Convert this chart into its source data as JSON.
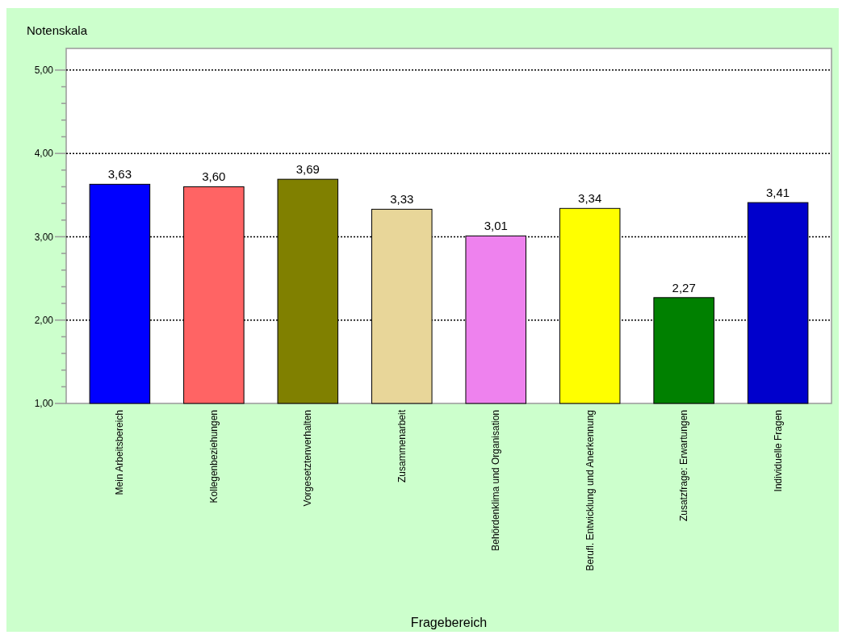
{
  "chart_data": {
    "type": "bar",
    "xlabel": "Fragebereich",
    "ylabel": "Notenskala",
    "categories": [
      "Mein Arbeitsbereich",
      "Kollegenbeziehungen",
      "Vorgesetztenverhalten",
      "Zusammenarbeit",
      "Behördenklima und Organisation",
      "Berufl. Entwicklung und Anerkennung",
      "Zusatzfrage: Erwartungen",
      "Individuelle Fragen"
    ],
    "values": [
      3.63,
      3.6,
      3.69,
      3.33,
      3.01,
      3.34,
      2.27,
      3.41
    ],
    "colors": [
      "#0000ff",
      "#ff6464",
      "#808000",
      "#e8d699",
      "#ee82ee",
      "#ffff00",
      "#008000",
      "#0000cc"
    ],
    "value_labels": [
      "3,63",
      "3,60",
      "3,69",
      "3,33",
      "3,01",
      "3,34",
      "2,27",
      "3,41"
    ],
    "ylim": [
      1,
      5.26
    ],
    "yticks": [
      {
        "value": 1,
        "label": "1,00"
      },
      {
        "value": 1.2,
        "label": null
      },
      {
        "value": 1.4,
        "label": null
      },
      {
        "value": 1.6,
        "label": null
      },
      {
        "value": 1.8,
        "label": null
      },
      {
        "value": 2,
        "label": "2,00"
      },
      {
        "value": 2.2,
        "label": null
      },
      {
        "value": 2.4,
        "label": null
      },
      {
        "value": 2.6,
        "label": null
      },
      {
        "value": 2.8,
        "label": null
      },
      {
        "value": 3,
        "label": "3,00"
      },
      {
        "value": 3.2,
        "label": null
      },
      {
        "value": 3.4,
        "label": null
      },
      {
        "value": 3.6,
        "label": null
      },
      {
        "value": 3.8,
        "label": null
      },
      {
        "value": 4,
        "label": "4,00"
      },
      {
        "value": 4.2,
        "label": null
      },
      {
        "value": 4.4,
        "label": null
      },
      {
        "value": 4.6,
        "label": null
      },
      {
        "value": 4.8,
        "label": null
      },
      {
        "value": 5,
        "label": "5,00"
      }
    ],
    "grid": "y"
  }
}
